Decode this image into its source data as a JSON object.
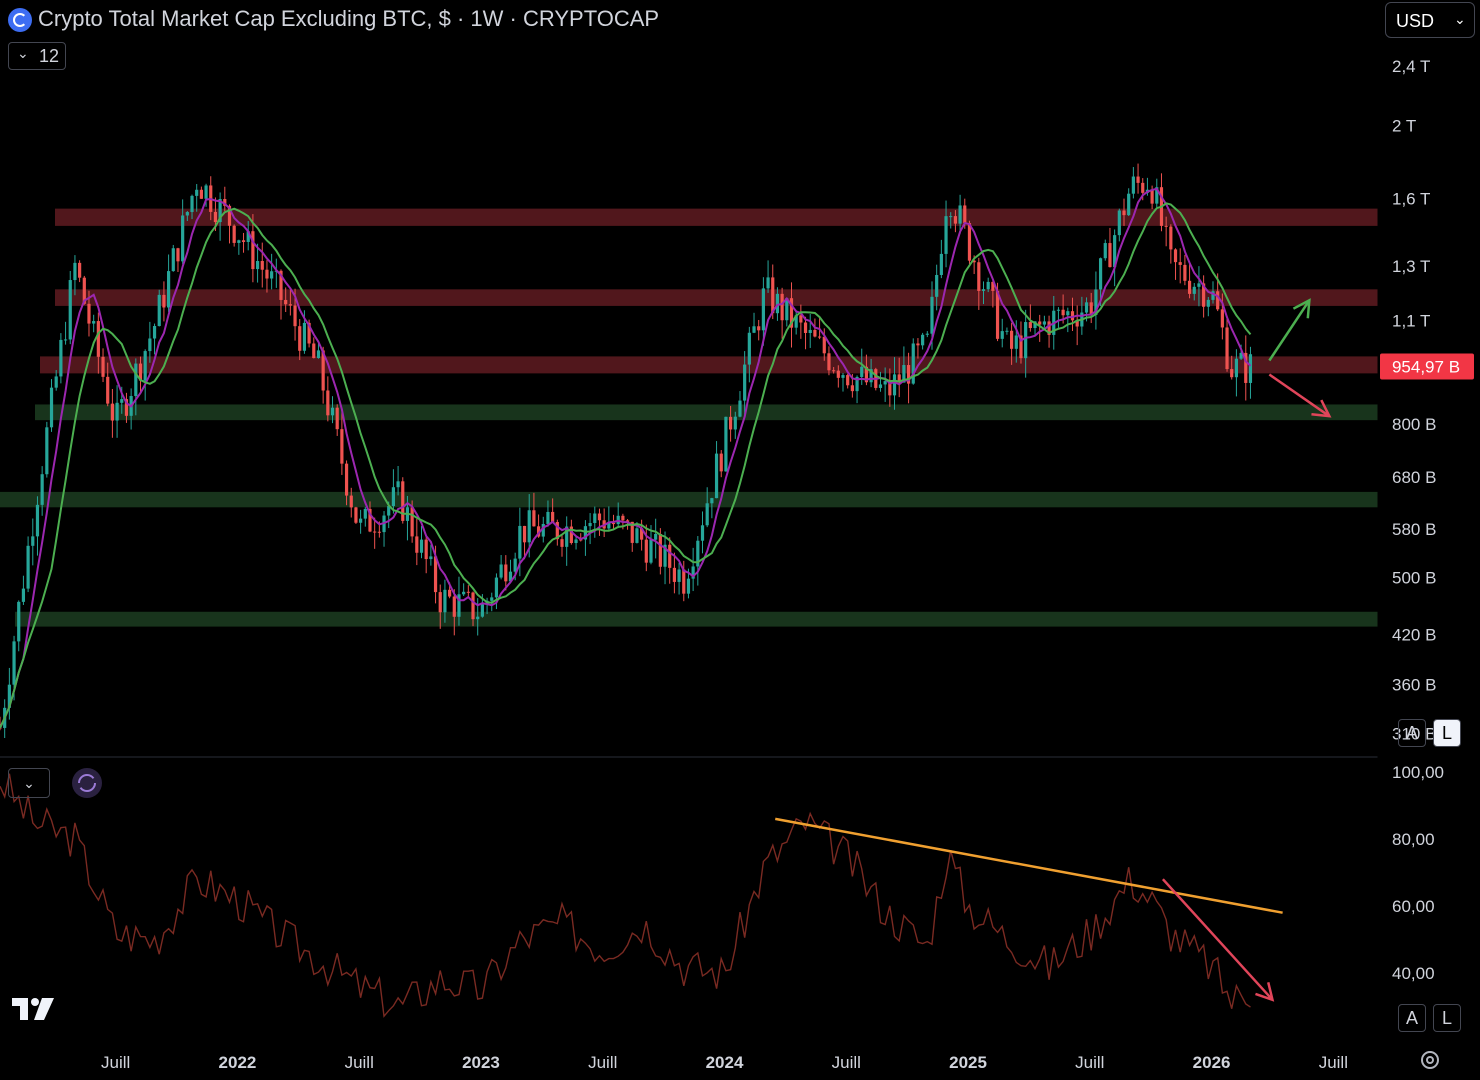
{
  "header": {
    "title": "Crypto Total Market Cap Excluding BTC, $ · 1W · CRYPTOCAP",
    "indicator_count": "12",
    "currency": "USD"
  },
  "price_axis": {
    "ticks": [
      {
        "label": "2,4 T",
        "value": 2400
      },
      {
        "label": "2 T",
        "value": 2000
      },
      {
        "label": "1,6 T",
        "value": 1600
      },
      {
        "label": "1,3 T",
        "value": 1300
      },
      {
        "label": "1,1 T",
        "value": 1100
      },
      {
        "label": "800 B",
        "value": 800
      },
      {
        "label": "680 B",
        "value": 680
      },
      {
        "label": "580 B",
        "value": 580
      },
      {
        "label": "500 B",
        "value": 500
      },
      {
        "label": "420 B",
        "value": 420
      },
      {
        "label": "360 B",
        "value": 360
      },
      {
        "label": "310 B",
        "value": 310
      }
    ],
    "last_price_label": "954,97 B",
    "last_price_value": 954.97,
    "scale": "log",
    "buttons": {
      "auto": "A",
      "log": "L"
    }
  },
  "rsi_axis": {
    "ticks": [
      {
        "label": "100,00",
        "value": 100
      },
      {
        "label": "80,00",
        "value": 80
      },
      {
        "label": "60,00",
        "value": 60
      },
      {
        "label": "40,00",
        "value": 40
      }
    ],
    "buttons": {
      "auto": "A",
      "log": "L"
    }
  },
  "time_axis": {
    "ticks": [
      {
        "label": "Juill",
        "date": "2021-07"
      },
      {
        "label": "2022",
        "date": "2022-01"
      },
      {
        "label": "Juill",
        "date": "2022-07"
      },
      {
        "label": "2023",
        "date": "2023-01"
      },
      {
        "label": "Juill",
        "date": "2023-07"
      },
      {
        "label": "2024",
        "date": "2024-01"
      },
      {
        "label": "Juill",
        "date": "2024-07"
      },
      {
        "label": "2025",
        "date": "2025-01"
      },
      {
        "label": "Juill",
        "date": "2025-07"
      },
      {
        "label": "2026",
        "date": "2026-01"
      },
      {
        "label": "Juill",
        "date": "2026-07"
      }
    ]
  },
  "colors": {
    "up": "#26a69a",
    "down": "#ef5350",
    "ma_fast": "#9c27b0",
    "ma_slow": "#4caf50",
    "resistance_zone": "#5a1a1f",
    "support_zone": "#1b3a1f",
    "rsi_line": "#7a2a22",
    "trendline": "#f0a030",
    "arrow_up": "#4caf50",
    "arrow_down": "#e0455a",
    "last_price_bg": "#f23645"
  },
  "chart_data": [
    {
      "type": "candlestick",
      "title": "Crypto Total Market Cap Excluding BTC, $ · 1W · CRYPTOCAP",
      "xlabel": "",
      "ylabel": "",
      "y_scale": "log",
      "ylim": [
        290,
        2600
      ],
      "units": "B USD",
      "x": [
        "2021-01",
        "2021-03",
        "2021-05",
        "2021-07",
        "2021-09",
        "2021-11",
        "2022-01",
        "2022-03",
        "2022-05",
        "2022-07",
        "2022-09",
        "2022-11",
        "2023-01",
        "2023-03",
        "2023-05",
        "2023-07",
        "2023-09",
        "2023-11",
        "2024-01",
        "2024-03",
        "2024-05",
        "2024-07",
        "2024-09",
        "2024-11",
        "2024-12",
        "2025-01",
        "2025-03",
        "2025-05",
        "2025-07",
        "2025-09",
        "2025-10",
        "2025-11",
        "2026-01",
        "2026-02",
        "2026-03"
      ],
      "series": [
        {
          "values": [
            280,
            620,
            1300,
            800,
            1100,
            1700,
            1450,
            1200,
            950,
            580,
            640,
            470,
            450,
            580,
            580,
            600,
            560,
            500,
            760,
            1200,
            1050,
            940,
            880,
            1020,
            1650,
            1400,
            1000,
            1100,
            1150,
            1650,
            1700,
            1300,
            1200,
            950,
            955
          ]
        }
      ],
      "zones": [
        {
          "kind": "resistance",
          "low": 1470,
          "high": 1550
        },
        {
          "kind": "resistance",
          "low": 1150,
          "high": 1210
        },
        {
          "kind": "resistance",
          "low": 935,
          "high": 985
        },
        {
          "kind": "support",
          "low": 810,
          "high": 850
        },
        {
          "kind": "support",
          "low": 620,
          "high": 650
        },
        {
          "kind": "support",
          "low": 430,
          "high": 450
        }
      ],
      "last_value": 954.97
    },
    {
      "type": "line",
      "title": "",
      "ylim": [
        20,
        100
      ],
      "x": [
        "2021-01",
        "2021-03",
        "2021-05",
        "2021-07",
        "2021-09",
        "2021-11",
        "2022-01",
        "2022-03",
        "2022-05",
        "2022-07",
        "2022-09",
        "2022-11",
        "2023-01",
        "2023-03",
        "2023-05",
        "2023-07",
        "2023-09",
        "2023-11",
        "2024-01",
        "2024-03",
        "2024-05",
        "2024-07",
        "2024-09",
        "2024-11",
        "2024-12",
        "2025-01",
        "2025-03",
        "2025-05",
        "2025-07",
        "2025-09",
        "2025-10",
        "2025-11",
        "2026-01",
        "2026-02",
        "2026-03"
      ],
      "series": [
        {
          "values": [
            100,
            85,
            80,
            52,
            50,
            68,
            62,
            52,
            44,
            36,
            30,
            38,
            35,
            50,
            55,
            47,
            55,
            42,
            40,
            72,
            85,
            75,
            58,
            48,
            76,
            60,
            50,
            42,
            52,
            68,
            62,
            52,
            42,
            32,
            35
          ]
        }
      ],
      "trendline": {
        "from": {
          "x": "2024-03",
          "y": 86
        },
        "to": {
          "x": "2026-04",
          "y": 58
        }
      }
    }
  ]
}
